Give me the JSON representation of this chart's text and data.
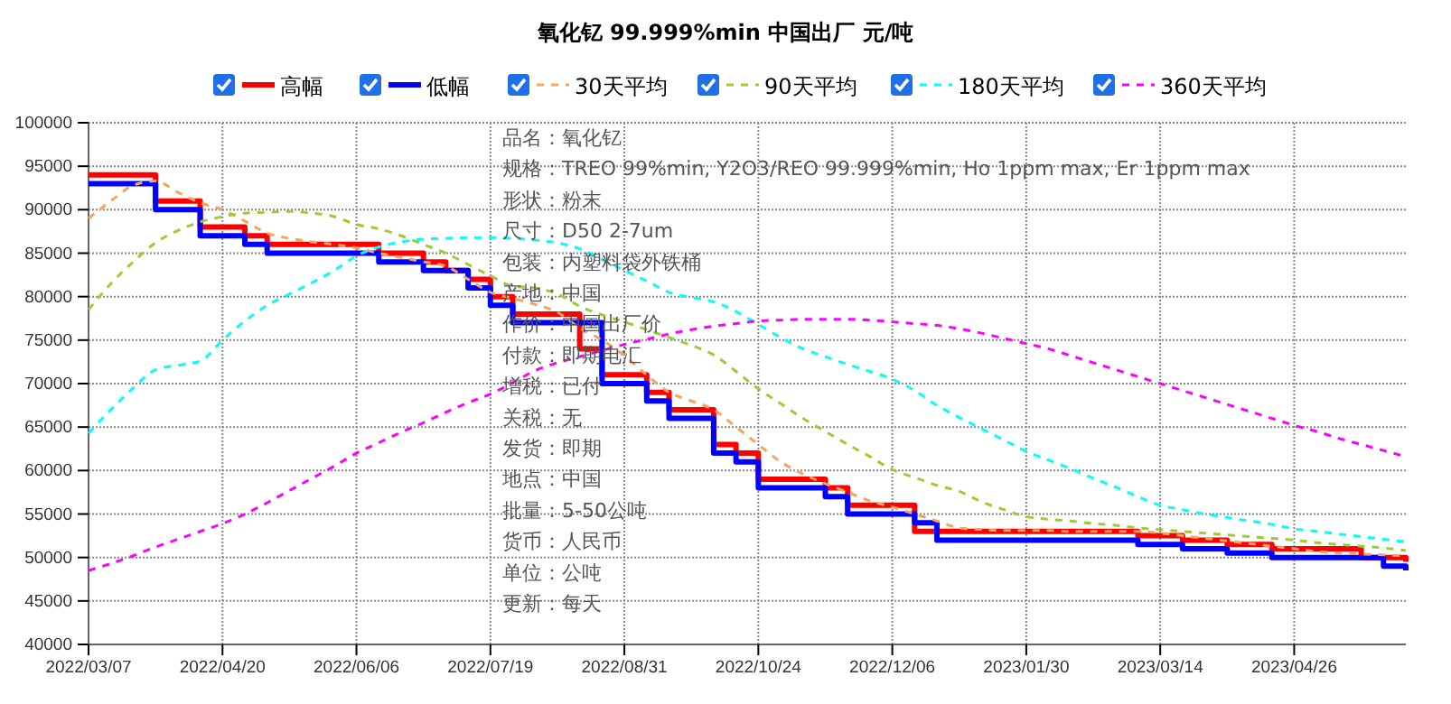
{
  "chart_data": {
    "type": "line",
    "title": "氧化钇 99.999%min 中国出厂 元/吨",
    "categories": [
      "2022/03/07",
      null,
      null,
      null,
      null,
      null,
      "2022/04/20",
      null,
      null,
      null,
      null,
      null,
      "2022/06/06",
      null,
      null,
      null,
      null,
      null,
      "2022/07/19",
      null,
      null,
      null,
      null,
      null,
      "2022/08/31",
      null,
      null,
      null,
      null,
      null,
      "2022/10/24",
      null,
      null,
      null,
      null,
      null,
      "2022/12/06",
      null,
      null,
      null,
      null,
      null,
      "2023/01/30",
      null,
      null,
      null,
      null,
      null,
      "2023/03/14",
      null,
      null,
      null,
      null,
      null,
      "2023/04/26",
      null,
      null,
      null,
      null,
      null
    ],
    "ylim": [
      40000,
      100000
    ],
    "yticks": [
      40000,
      45000,
      50000,
      55000,
      60000,
      65000,
      70000,
      75000,
      80000,
      85000,
      90000,
      95000,
      100000
    ],
    "grid": true,
    "legend": "top",
    "series": [
      {
        "name": "高幅",
        "type": "step",
        "color": "#ff0000",
        "line_style": "solid",
        "values": [
          94000,
          94000,
          94000,
          91000,
          91000,
          88000,
          88000,
          87000,
          86000,
          86000,
          86000,
          86000,
          86000,
          85000,
          85000,
          84000,
          83000,
          82000,
          80000,
          78000,
          78000,
          78000,
          74000,
          71000,
          71000,
          69000,
          67000,
          67000,
          63000,
          62000,
          59000,
          59000,
          59000,
          58000,
          56000,
          56000,
          56000,
          53000,
          53000,
          53000,
          53000,
          53000,
          53000,
          53000,
          53000,
          53000,
          53000,
          52500,
          52500,
          52000,
          52000,
          51500,
          51500,
          51000,
          51000,
          51000,
          51000,
          50000,
          50000,
          49500
        ]
      },
      {
        "name": "低幅",
        "type": "step",
        "color": "#0000ff",
        "line_style": "solid",
        "values": [
          93000,
          93000,
          93000,
          90000,
          90000,
          87000,
          87000,
          86000,
          85000,
          85000,
          85000,
          85000,
          85000,
          84000,
          84000,
          83000,
          83000,
          81000,
          79000,
          77000,
          77000,
          77000,
          77000,
          70000,
          70000,
          68000,
          66000,
          66000,
          62000,
          61000,
          58000,
          58000,
          58000,
          57000,
          55000,
          55000,
          55000,
          54000,
          52000,
          52000,
          52000,
          52000,
          52000,
          52000,
          52000,
          52000,
          52000,
          51500,
          51500,
          51000,
          51000,
          50500,
          50500,
          50000,
          50000,
          50000,
          50000,
          50000,
          49000,
          48500
        ]
      },
      {
        "name": "30天平均",
        "color": "#f4a460",
        "line_style": "dashed",
        "values": [
          89000,
          91000,
          92800,
          93300,
          92000,
          90800,
          90000,
          88700,
          87300,
          86700,
          86300,
          86000,
          85600,
          85000,
          84500,
          84000,
          83500,
          82000,
          80500,
          79800,
          79100,
          78200,
          76400,
          75000,
          73200,
          71000,
          69000,
          68000,
          67000,
          65000,
          63000,
          61000,
          59600,
          58500,
          57500,
          56500,
          55800,
          55000,
          54200,
          53400,
          53200,
          53100,
          53100,
          53100,
          53000,
          53000,
          53000,
          53000,
          52800,
          52500,
          52200,
          51900,
          51600,
          51300,
          51000,
          50700,
          50500,
          50400,
          50300,
          50200
        ]
      },
      {
        "name": "90天平均",
        "color": "#9acd32",
        "line_style": "dashed",
        "values": [
          78500,
          81500,
          84000,
          86200,
          87600,
          88600,
          89200,
          89600,
          89700,
          89800,
          89600,
          89200,
          88300,
          87800,
          87000,
          86000,
          85000,
          83700,
          82400,
          81200,
          81000,
          80300,
          78900,
          77900,
          77100,
          76200,
          75300,
          74400,
          73300,
          71400,
          69400,
          67700,
          66000,
          64500,
          63000,
          61600,
          60100,
          59200,
          58300,
          57600,
          56400,
          55500,
          54700,
          54400,
          54200,
          53900,
          53700,
          53400,
          53200,
          53000,
          52800,
          52600,
          52400,
          52200,
          52000,
          51700,
          51500,
          51300,
          51100,
          50800
        ]
      },
      {
        "name": "180天平均",
        "color": "#00ffff",
        "line_style": "dashed",
        "values": [
          64300,
          67000,
          69500,
          71600,
          72100,
          72600,
          75000,
          77200,
          79000,
          80300,
          81600,
          83000,
          84700,
          85700,
          86300,
          86600,
          86700,
          86800,
          86800,
          86700,
          86500,
          86200,
          85500,
          84300,
          83000,
          81800,
          80500,
          79900,
          79400,
          78300,
          76800,
          75300,
          74000,
          73100,
          72200,
          71400,
          70500,
          69200,
          67500,
          66100,
          64800,
          63500,
          62200,
          61200,
          60200,
          59100,
          58100,
          57000,
          56000,
          55500,
          55000,
          54600,
          54200,
          53800,
          53300,
          53000,
          52700,
          52400,
          52100,
          51800
        ]
      },
      {
        "name": "360天平均",
        "color": "#ff00ff",
        "line_style": "dashed",
        "values": [
          48500,
          49300,
          50200,
          51200,
          52100,
          53000,
          53900,
          55000,
          56300,
          57700,
          59100,
          60500,
          62000,
          63200,
          64400,
          65500,
          66700,
          67800,
          68800,
          70100,
          71500,
          72400,
          73100,
          73800,
          74500,
          75100,
          75700,
          76200,
          76600,
          76900,
          77200,
          77300,
          77400,
          77400,
          77400,
          77300,
          77100,
          76900,
          76700,
          76300,
          75800,
          75200,
          74600,
          74000,
          73200,
          72400,
          71600,
          70800,
          70000,
          69200,
          68400,
          67600,
          66800,
          66000,
          65200,
          64500,
          63700,
          63000,
          62300,
          61600
        ]
      }
    ],
    "annotations": [
      "品名：氧化钇",
      "规格：TREO 99%min, Y2O3/REO 99.999%min, Ho 1ppm max, Er 1ppm max",
      "形状：粉末",
      "尺寸：D50 2-7um",
      "包装：内塑料袋外铁桶",
      "产地：中国",
      "作价：中国出厂价",
      "付款：即期电汇",
      "增税：已付",
      "关税：无",
      "发货：即期",
      "地点：中国",
      "批量：5-50公吨",
      "货币：人民币",
      "单位：公吨",
      "更新：每天"
    ]
  }
}
